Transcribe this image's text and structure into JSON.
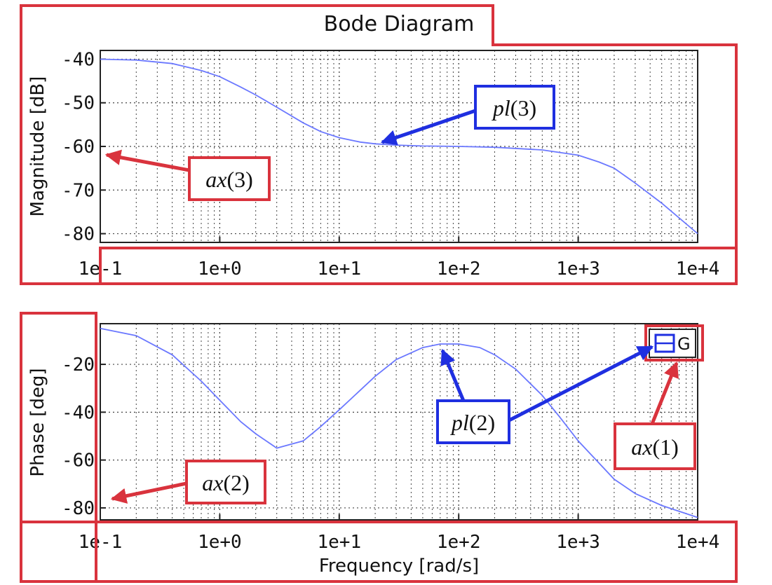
{
  "chart_data": {
    "type": "line",
    "title": "Bode Diagram",
    "xlabel": "Frequency [rad/s]",
    "x_scale": "log",
    "x_ticks": [
      "1e-1",
      "1e+0",
      "1e+1",
      "1e+2",
      "1e+3",
      "1e+4"
    ],
    "grid": true,
    "legend": {
      "entry": "G",
      "placement": "top-right"
    },
    "subplots": [
      {
        "ylabel": "Magnitude [dB]",
        "ylim": [
          -82,
          -38
        ],
        "y_ticks": [
          -40,
          -50,
          -60,
          -70,
          -80
        ],
        "series": [
          {
            "color": "#6b78ff",
            "x": [
              0.1,
              0.2,
              0.4,
              0.7,
              1,
              1.5,
              2,
              3,
              5,
              7,
              10,
              15,
              20,
              30,
              50,
              100,
              200,
              500,
              1000,
              1500,
              2000,
              3000,
              5000,
              10000
            ],
            "y": [
              -40,
              -40.2,
              -41,
              -42.6,
              -44,
              -46.4,
              -48.2,
              -51,
              -54.6,
              -56.6,
              -58,
              -59,
              -59.4,
              -59.7,
              -59.9,
              -60,
              -60.2,
              -60.8,
              -62,
              -63.6,
              -65,
              -68.4,
              -73,
              -80
            ]
          }
        ]
      },
      {
        "ylabel": "Phase [deg]",
        "ylim": [
          -85,
          -3
        ],
        "y_ticks": [
          -20,
          -40,
          -60,
          -80
        ],
        "series": [
          {
            "name": "G",
            "color": "#6b78ff",
            "x": [
              0.1,
              0.2,
              0.4,
              0.7,
              1,
              1.5,
              2,
              3,
              5,
              7,
              10,
              20,
              30,
              50,
              70,
              100,
              150,
              200,
              300,
              500,
              700,
              1000,
              2000,
              3000,
              5000,
              10000
            ],
            "y": [
              -5,
              -8,
              -16,
              -27,
              -35,
              -44,
              -49,
              -55,
              -52,
              -46,
              -39,
              -25,
              -18,
              -13,
              -11.5,
              -11.5,
              -13,
              -16,
              -22,
              -33,
              -42,
              -52,
              -68,
              -74,
              -79,
              -84
            ]
          }
        ]
      }
    ]
  },
  "annotations": {
    "pl3": {
      "italic": "pl",
      "rest": "(3)"
    },
    "ax3": {
      "italic": "ax",
      "rest": "(3)"
    },
    "pl2": {
      "italic": "pl",
      "rest": "(2)"
    },
    "ax2": {
      "italic": "ax",
      "rest": "(2)"
    },
    "ax1": {
      "italic": "ax",
      "rest": "(1)"
    }
  },
  "colors": {
    "frame": "#d9333d",
    "plot_handle": "#1f2fe0",
    "curve": "#6b78ff",
    "grid": "#444444"
  }
}
